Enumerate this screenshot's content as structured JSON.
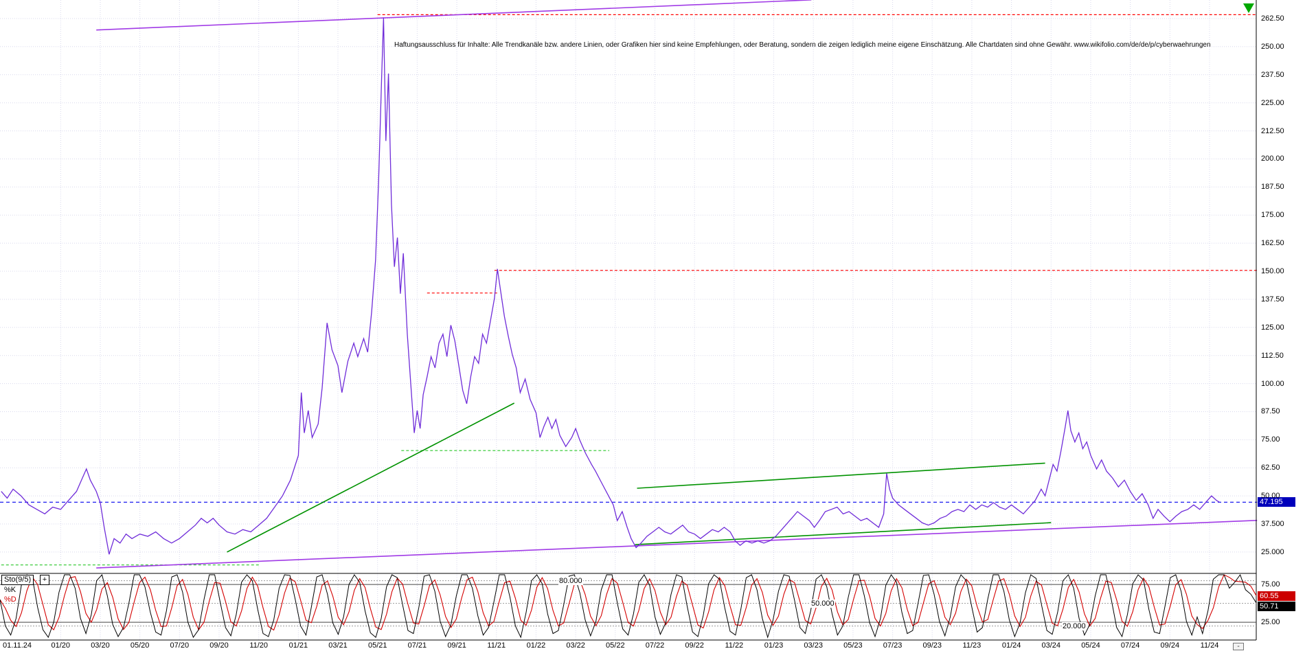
{
  "disclaimer": "Haftungsausschluss für Inhalte: Alle Trendkanäle bzw. andere Linien, oder Grafiken hier sind keine Empfehlungen, oder Beratung, sondern die zeigen lediglich meine eigene Einschätzung. Alle Chartdaten sind ohne Gewähr.  www.wikifolio.com/de/de/p/cyberwaehrungen",
  "price_axis": {
    "labels": [
      "262.50",
      "250.00",
      "237.50",
      "225.00",
      "212.50",
      "200.00",
      "187.50",
      "175.00",
      "162.50",
      "150.00",
      "137.50",
      "125.00",
      "112.50",
      "100.00",
      "87.50",
      "75.00",
      "62.50",
      "50.00",
      "37.500",
      "25.000"
    ],
    "values": [
      262.5,
      250,
      237.5,
      225,
      212.5,
      200,
      187.5,
      175,
      162.5,
      150,
      137.5,
      125,
      112.5,
      100,
      87.5,
      75,
      62.5,
      50,
      37.5,
      25
    ]
  },
  "current_price": {
    "label": "47.195",
    "value": 47.195,
    "badge_color": "#0000bb"
  },
  "x_axis": {
    "first_label": "01.11.24",
    "labels": [
      "01/20",
      "03/20",
      "05/20",
      "07/20",
      "09/20",
      "11/20",
      "01/21",
      "03/21",
      "05/21",
      "07/21",
      "09/21",
      "11/21",
      "01/22",
      "03/22",
      "05/22",
      "07/22",
      "09/22",
      "11/22",
      "01/23",
      "03/23",
      "05/23",
      "07/23",
      "09/23",
      "11/23",
      "01/24",
      "03/24",
      "05/24",
      "07/24",
      "09/24",
      "11/24"
    ]
  },
  "controls": {
    "minus_label": "-"
  },
  "marker_arrow": {
    "name": "green-down-arrow",
    "color": "#00a800"
  },
  "grid_color": "#d8d8ec",
  "indicator": {
    "name_label": "Sto(9/5)",
    "expand_label": "+",
    "k_label": "%K",
    "d_label": "%D",
    "k_color": "#000000",
    "d_color": "#d40000",
    "k_value_badge": "50.71",
    "d_value_badge": "60.55",
    "k_badge_color": "#000000",
    "d_badge_color": "#cc0000",
    "levels": [
      {
        "label": "80.000",
        "value": 80
      },
      {
        "label": "50.000",
        "value": 50
      },
      {
        "label": "20.000",
        "value": 20
      }
    ],
    "axis_labels": [
      {
        "label": "75.00",
        "value": 75
      },
      {
        "label": "25.00",
        "value": 25
      }
    ]
  },
  "chart_data": {
    "type": "line",
    "description": "Crypto wikifolio price chart Nov 2019 - Nov 2024 with Stochastic(9/5) sub-panel",
    "x_unit": "months since Nov 2019",
    "x_tick_interval_months": 2,
    "ylim": [
      17,
      266
    ],
    "grid": true,
    "price_color": "#6f2cd9",
    "last_price": 47.195,
    "price_series": [
      [
        -1,
        52
      ],
      [
        -0.7,
        49
      ],
      [
        -0.4,
        53
      ],
      [
        0,
        50
      ],
      [
        0.4,
        46
      ],
      [
        0.8,
        44
      ],
      [
        1.2,
        42
      ],
      [
        1.6,
        45
      ],
      [
        2,
        44
      ],
      [
        2.4,
        48
      ],
      [
        2.8,
        52
      ],
      [
        3.1,
        58
      ],
      [
        3.3,
        62
      ],
      [
        3.5,
        57
      ],
      [
        3.8,
        52
      ],
      [
        4,
        47
      ],
      [
        4.2,
        36
      ],
      [
        4.45,
        24
      ],
      [
        4.7,
        31
      ],
      [
        5,
        29
      ],
      [
        5.3,
        33
      ],
      [
        5.6,
        31
      ],
      [
        6,
        33
      ],
      [
        6.4,
        32
      ],
      [
        6.8,
        34
      ],
      [
        7.2,
        31
      ],
      [
        7.6,
        29
      ],
      [
        8,
        31
      ],
      [
        8.4,
        34
      ],
      [
        8.8,
        37
      ],
      [
        9.1,
        40
      ],
      [
        9.4,
        38
      ],
      [
        9.7,
        40
      ],
      [
        10,
        37
      ],
      [
        10.4,
        34
      ],
      [
        10.8,
        33
      ],
      [
        11.2,
        35
      ],
      [
        11.6,
        34
      ],
      [
        12,
        37
      ],
      [
        12.4,
        40
      ],
      [
        12.8,
        45
      ],
      [
        13.2,
        50
      ],
      [
        13.6,
        57
      ],
      [
        14,
        68
      ],
      [
        14.15,
        96
      ],
      [
        14.3,
        78
      ],
      [
        14.5,
        88
      ],
      [
        14.7,
        76
      ],
      [
        15,
        82
      ],
      [
        15.2,
        98
      ],
      [
        15.45,
        127
      ],
      [
        15.7,
        115
      ],
      [
        16,
        108
      ],
      [
        16.2,
        96
      ],
      [
        16.5,
        110
      ],
      [
        16.8,
        118
      ],
      [
        17,
        112
      ],
      [
        17.3,
        120
      ],
      [
        17.5,
        114
      ],
      [
        17.7,
        132
      ],
      [
        17.9,
        155
      ],
      [
        18.05,
        190
      ],
      [
        18.2,
        235
      ],
      [
        18.3,
        263
      ],
      [
        18.42,
        208
      ],
      [
        18.55,
        238
      ],
      [
        18.7,
        180
      ],
      [
        18.85,
        152
      ],
      [
        19,
        165
      ],
      [
        19.15,
        140
      ],
      [
        19.3,
        158
      ],
      [
        19.5,
        122
      ],
      [
        19.7,
        97
      ],
      [
        19.85,
        78
      ],
      [
        20,
        88
      ],
      [
        20.15,
        80
      ],
      [
        20.3,
        95
      ],
      [
        20.5,
        103
      ],
      [
        20.7,
        112
      ],
      [
        20.9,
        107
      ],
      [
        21.1,
        118
      ],
      [
        21.3,
        122
      ],
      [
        21.5,
        112
      ],
      [
        21.7,
        126
      ],
      [
        21.9,
        119
      ],
      [
        22.1,
        108
      ],
      [
        22.3,
        97
      ],
      [
        22.5,
        91
      ],
      [
        22.7,
        103
      ],
      [
        22.9,
        112
      ],
      [
        23.1,
        109
      ],
      [
        23.3,
        122
      ],
      [
        23.5,
        118
      ],
      [
        23.7,
        128
      ],
      [
        23.9,
        138
      ],
      [
        24.05,
        151
      ],
      [
        24.2,
        142
      ],
      [
        24.4,
        130
      ],
      [
        24.6,
        121
      ],
      [
        24.8,
        113
      ],
      [
        25,
        107
      ],
      [
        25.2,
        96
      ],
      [
        25.45,
        102
      ],
      [
        25.7,
        93
      ],
      [
        26,
        87
      ],
      [
        26.2,
        76
      ],
      [
        26.4,
        81
      ],
      [
        26.6,
        85
      ],
      [
        26.8,
        80
      ],
      [
        27,
        84
      ],
      [
        27.2,
        77
      ],
      [
        27.5,
        72
      ],
      [
        27.8,
        76
      ],
      [
        28,
        80
      ],
      [
        28.2,
        75
      ],
      [
        28.5,
        69
      ],
      [
        28.8,
        64
      ],
      [
        29,
        61
      ],
      [
        29.3,
        56
      ],
      [
        29.6,
        51
      ],
      [
        29.9,
        46
      ],
      [
        30.1,
        39
      ],
      [
        30.35,
        43
      ],
      [
        30.6,
        36
      ],
      [
        30.8,
        31
      ],
      [
        31.05,
        27
      ],
      [
        31.3,
        29
      ],
      [
        31.6,
        32
      ],
      [
        31.9,
        34
      ],
      [
        32.2,
        36
      ],
      [
        32.5,
        34
      ],
      [
        32.8,
        33
      ],
      [
        33.1,
        35
      ],
      [
        33.4,
        37
      ],
      [
        33.7,
        34
      ],
      [
        34,
        33
      ],
      [
        34.3,
        31
      ],
      [
        34.6,
        33
      ],
      [
        34.9,
        35
      ],
      [
        35.2,
        34
      ],
      [
        35.5,
        36
      ],
      [
        35.8,
        34
      ],
      [
        36.05,
        30
      ],
      [
        36.3,
        28
      ],
      [
        36.6,
        30
      ],
      [
        36.9,
        29
      ],
      [
        37.2,
        30
      ],
      [
        37.5,
        29
      ],
      [
        37.8,
        30
      ],
      [
        38.1,
        32
      ],
      [
        38.4,
        35
      ],
      [
        38.7,
        38
      ],
      [
        39,
        41
      ],
      [
        39.2,
        43
      ],
      [
        39.5,
        41
      ],
      [
        39.8,
        39
      ],
      [
        40.05,
        36
      ],
      [
        40.3,
        39
      ],
      [
        40.6,
        43
      ],
      [
        40.9,
        44
      ],
      [
        41.2,
        45
      ],
      [
        41.5,
        42
      ],
      [
        41.8,
        43
      ],
      [
        42.1,
        41
      ],
      [
        42.4,
        39
      ],
      [
        42.7,
        40
      ],
      [
        43,
        38
      ],
      [
        43.3,
        36
      ],
      [
        43.55,
        42
      ],
      [
        43.7,
        60
      ],
      [
        43.85,
        53
      ],
      [
        44,
        49
      ],
      [
        44.3,
        46
      ],
      [
        44.6,
        44
      ],
      [
        44.9,
        42
      ],
      [
        45.2,
        40
      ],
      [
        45.5,
        38
      ],
      [
        45.8,
        37
      ],
      [
        46.1,
        38
      ],
      [
        46.4,
        40
      ],
      [
        46.7,
        41
      ],
      [
        47,
        43
      ],
      [
        47.3,
        44
      ],
      [
        47.6,
        43
      ],
      [
        47.9,
        46
      ],
      [
        48.2,
        44
      ],
      [
        48.5,
        46
      ],
      [
        48.8,
        45
      ],
      [
        49.1,
        47
      ],
      [
        49.4,
        45
      ],
      [
        49.7,
        44
      ],
      [
        50,
        46
      ],
      [
        50.3,
        44
      ],
      [
        50.6,
        42
      ],
      [
        50.9,
        45
      ],
      [
        51.2,
        48
      ],
      [
        51.5,
        53
      ],
      [
        51.7,
        50
      ],
      [
        51.9,
        57
      ],
      [
        52.1,
        64
      ],
      [
        52.3,
        61
      ],
      [
        52.5,
        70
      ],
      [
        52.7,
        80
      ],
      [
        52.85,
        88
      ],
      [
        53,
        79
      ],
      [
        53.2,
        74
      ],
      [
        53.4,
        78
      ],
      [
        53.6,
        71
      ],
      [
        53.8,
        74
      ],
      [
        54,
        68
      ],
      [
        54.3,
        62
      ],
      [
        54.55,
        66
      ],
      [
        54.8,
        61
      ],
      [
        55.1,
        58
      ],
      [
        55.4,
        54
      ],
      [
        55.7,
        57
      ],
      [
        56,
        52
      ],
      [
        56.3,
        48
      ],
      [
        56.6,
        51
      ],
      [
        56.9,
        46
      ],
      [
        57.15,
        40
      ],
      [
        57.4,
        44
      ],
      [
        57.7,
        41
      ],
      [
        58,
        38.5
      ],
      [
        58.3,
        41
      ],
      [
        58.6,
        43
      ],
      [
        58.9,
        44
      ],
      [
        59.2,
        46
      ],
      [
        59.5,
        44
      ],
      [
        59.8,
        47
      ],
      [
        60.1,
        50
      ],
      [
        60.35,
        48
      ],
      [
        60.5,
        47.195
      ]
    ],
    "trendlines": [
      {
        "name": "upper-channel-line",
        "m1": 3.8,
        "p1": 257.4,
        "m2": 39.9,
        "p2": 270.8,
        "color": "#a03ae6"
      },
      {
        "name": "lower-channel-line",
        "m1": 3.8,
        "p1": 17.9,
        "m2": 62.4,
        "p2": 39.1,
        "color": "#a03ae6"
      },
      {
        "name": "uptrend-2020-2021",
        "m1": 10.4,
        "p1": 25.0,
        "m2": 24.9,
        "p2": 91.3,
        "color": "#009200"
      },
      {
        "name": "uptrend-2022-2024-upper",
        "m1": 31.1,
        "p1": 53.4,
        "m2": 51.7,
        "p2": 64.6,
        "color": "#009200"
      },
      {
        "name": "uptrend-2022-2024-lower",
        "m1": 31.0,
        "p1": 28.3,
        "m2": 52.0,
        "p2": 38.1,
        "color": "#009200"
      }
    ],
    "hlines": [
      {
        "name": "ath-resistance",
        "price": 264.2,
        "m1": 18.0,
        "m2": 62.4,
        "color": "#ff0000",
        "dash": "4 3"
      },
      {
        "name": "resistance-150",
        "price": 150.4,
        "m1": 23.9,
        "m2": 62.4,
        "color": "#ff0000",
        "dash": "4 3"
      },
      {
        "name": "resistance-140",
        "price": 140.3,
        "m1": 20.5,
        "m2": 24.1,
        "color": "#ff0000",
        "dash": "4 3"
      },
      {
        "name": "support-70",
        "price": 70.2,
        "m1": 19.2,
        "m2": 29.7,
        "color": "#3ecc3e",
        "dash": "4 3"
      },
      {
        "name": "support-19",
        "price": 19.3,
        "m1": -1.0,
        "m2": 12.1,
        "color": "#3ecc3e",
        "dash": "4 3"
      },
      {
        "name": "current-price-line",
        "price": 47.195,
        "m1": -1.06,
        "m2": 62.4,
        "color": "#0000ee",
        "dash": "5 4"
      }
    ],
    "stochastic_k": [
      55,
      20,
      8,
      30,
      75,
      95,
      85,
      45,
      15,
      5,
      25,
      65,
      90,
      96,
      70,
      30,
      10,
      35,
      80,
      92,
      60,
      22,
      6,
      18,
      50,
      88,
      94,
      72,
      38,
      12,
      8,
      40,
      85,
      95,
      65,
      25,
      5,
      15,
      55,
      90,
      88,
      52,
      18,
      7,
      35,
      78,
      96,
      80,
      42,
      10,
      6,
      28,
      70,
      93,
      87,
      55,
      20,
      8,
      45,
      85,
      92,
      62,
      24,
      9,
      32,
      75,
      95,
      78,
      40,
      11,
      5,
      30,
      72,
      94,
      84,
      48,
      14,
      10,
      44,
      86,
      91,
      66,
      26,
      6,
      22,
      60,
      90,
      94,
      70,
      34,
      8,
      18,
      52,
      88,
      92,
      58,
      20,
      5,
      38,
      80,
      96,
      76,
      36,
      10,
      14,
      48,
      86,
      93,
      64,
      28,
      7,
      26,
      68,
      92,
      88,
      50,
      16,
      8,
      36,
      78,
      95,
      74,
      32,
      9,
      24,
      62,
      91,
      85,
      46,
      12,
      6,
      34,
      76,
      94,
      82,
      44,
      13,
      8,
      42,
      84,
      96,
      68,
      30,
      5,
      28,
      66,
      92,
      86,
      54,
      18,
      10,
      40,
      82,
      95,
      72,
      36,
      8,
      20,
      58,
      89,
      93,
      60,
      24,
      6,
      30,
      74,
      96,
      78,
      38,
      10,
      14,
      50,
      87,
      91,
      62,
      26,
      7,
      32,
      72,
      94,
      80,
      46,
      12,
      18,
      56,
      90,
      92,
      66,
      28,
      6,
      24,
      64,
      91,
      83,
      48,
      14,
      9,
      38,
      80,
      95,
      70,
      30,
      8,
      22,
      60,
      88,
      90,
      55,
      18,
      6,
      35,
      76,
      93,
      81,
      42,
      12,
      10,
      46,
      84,
      94,
      66,
      26,
      8,
      32,
      10,
      40,
      82,
      93,
      90,
      70,
      78,
      88,
      68,
      62,
      50.71
    ]
  }
}
